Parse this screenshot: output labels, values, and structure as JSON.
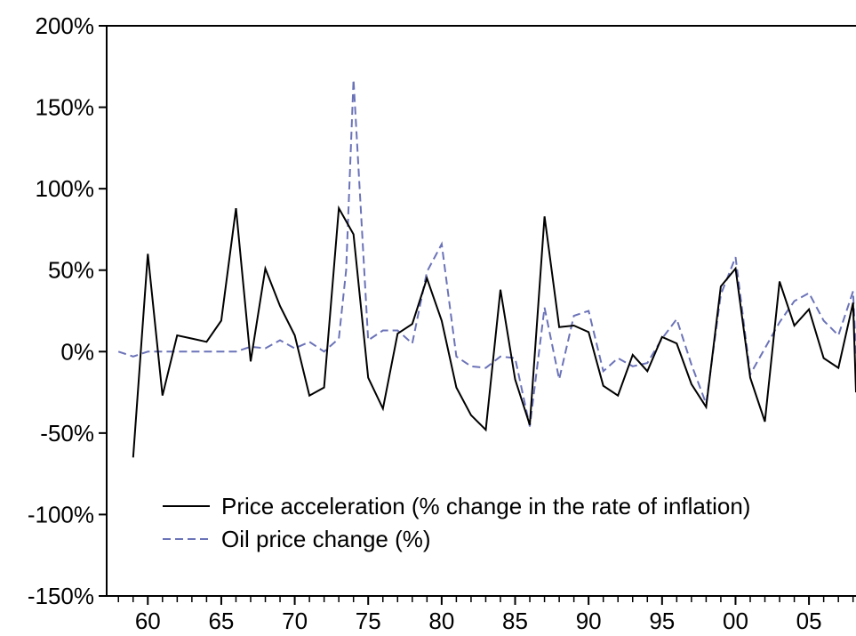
{
  "chart_data": {
    "type": "line",
    "ylim": [
      -150,
      200
    ],
    "xlim": [
      1957.2,
      2008.2
    ],
    "grid": false,
    "legend_position": "bottom-left",
    "y_ticks": [
      {
        "value": -150,
        "label": "-150%"
      },
      {
        "value": -100,
        "label": "-100%"
      },
      {
        "value": -50,
        "label": "-50%"
      },
      {
        "value": 0,
        "label": "0%"
      },
      {
        "value": 50,
        "label": "50%"
      },
      {
        "value": 100,
        "label": "100%"
      },
      {
        "value": 150,
        "label": "150%"
      },
      {
        "value": 200,
        "label": "200%"
      }
    ],
    "x_ticks": [
      {
        "value": 1960,
        "label": "60"
      },
      {
        "value": 1965,
        "label": "65"
      },
      {
        "value": 1970,
        "label": "70"
      },
      {
        "value": 1975,
        "label": "75"
      },
      {
        "value": 1980,
        "label": "80"
      },
      {
        "value": 1985,
        "label": "85"
      },
      {
        "value": 1990,
        "label": "90"
      },
      {
        "value": 1995,
        "label": "95"
      },
      {
        "value": 2000,
        "label": "00"
      },
      {
        "value": 2005,
        "label": "05"
      }
    ],
    "series": [
      {
        "name": "Price acceleration (% change in the rate of inflation)",
        "color": "#000000",
        "dash": "solid",
        "points": [
          [
            1959,
            -65
          ],
          [
            1960,
            60
          ],
          [
            1961,
            -27
          ],
          [
            1962,
            10
          ],
          [
            1963,
            8
          ],
          [
            1964,
            6
          ],
          [
            1965,
            19
          ],
          [
            1966,
            88
          ],
          [
            1967,
            -6
          ],
          [
            1968,
            51
          ],
          [
            1969,
            28
          ],
          [
            1970,
            10
          ],
          [
            1971,
            -27
          ],
          [
            1972,
            -22
          ],
          [
            1973,
            88
          ],
          [
            1974,
            72
          ],
          [
            1975,
            -16
          ],
          [
            1976,
            -35
          ],
          [
            1977,
            11
          ],
          [
            1978,
            17
          ],
          [
            1979,
            45
          ],
          [
            1980,
            19
          ],
          [
            1981,
            -22
          ],
          [
            1982,
            -39
          ],
          [
            1983,
            -48
          ],
          [
            1984,
            38
          ],
          [
            1985,
            -17
          ],
          [
            1986,
            -45
          ],
          [
            1987,
            83
          ],
          [
            1988,
            15
          ],
          [
            1989,
            16
          ],
          [
            1990,
            12
          ],
          [
            1991,
            -21
          ],
          [
            1992,
            -27
          ],
          [
            1993,
            -2
          ],
          [
            1994,
            -12
          ],
          [
            1995,
            9
          ],
          [
            1996,
            5
          ],
          [
            1997,
            -20
          ],
          [
            1998,
            -34
          ],
          [
            1999,
            40
          ],
          [
            2000,
            51
          ],
          [
            2001,
            -16
          ],
          [
            2002,
            -43
          ],
          [
            2003,
            43
          ],
          [
            2004,
            16
          ],
          [
            2005,
            26
          ],
          [
            2006,
            -4
          ],
          [
            2007,
            -10
          ],
          [
            2008,
            30
          ],
          [
            2008.2,
            -25
          ]
        ]
      },
      {
        "name": "Oil price change (%)",
        "color": "#6b73b8",
        "dash": "dashed",
        "points": [
          [
            1958,
            0
          ],
          [
            1959,
            -3
          ],
          [
            1960,
            0
          ],
          [
            1961,
            0
          ],
          [
            1962,
            0
          ],
          [
            1963,
            0
          ],
          [
            1964,
            0
          ],
          [
            1965,
            0
          ],
          [
            1966,
            0
          ],
          [
            1967,
            3
          ],
          [
            1968,
            2
          ],
          [
            1969,
            7
          ],
          [
            1970,
            2
          ],
          [
            1971,
            6
          ],
          [
            1972,
            0
          ],
          [
            1973,
            8
          ],
          [
            1973.5,
            50
          ],
          [
            1974,
            167
          ],
          [
            1975,
            7
          ],
          [
            1976,
            13
          ],
          [
            1977,
            13
          ],
          [
            1978,
            5
          ],
          [
            1979,
            49
          ],
          [
            1980,
            66
          ],
          [
            1981,
            -3
          ],
          [
            1982,
            -9
          ],
          [
            1983,
            -10
          ],
          [
            1984,
            -3
          ],
          [
            1985,
            -4
          ],
          [
            1986,
            -46
          ],
          [
            1987,
            27
          ],
          [
            1988,
            -17
          ],
          [
            1989,
            22
          ],
          [
            1990,
            25
          ],
          [
            1991,
            -12
          ],
          [
            1992,
            -4
          ],
          [
            1993,
            -9
          ],
          [
            1994,
            -7
          ],
          [
            1995,
            8
          ],
          [
            1996,
            20
          ],
          [
            1997,
            -8
          ],
          [
            1998,
            -32
          ],
          [
            1999,
            35
          ],
          [
            2000,
            58
          ],
          [
            2001,
            -14
          ],
          [
            2002,
            2
          ],
          [
            2003,
            18
          ],
          [
            2004,
            31
          ],
          [
            2005,
            36
          ],
          [
            2006,
            19
          ],
          [
            2007,
            10
          ],
          [
            2008,
            37
          ],
          [
            2008.2,
            -2
          ]
        ]
      }
    ]
  }
}
